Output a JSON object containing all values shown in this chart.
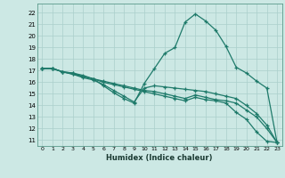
{
  "xlabel": "Humidex (Indice chaleur)",
  "ylabel": "",
  "bg_color": "#cce8e4",
  "grid_color": "#aacfcb",
  "line_color": "#1e7a6a",
  "xlim": [
    -0.5,
    23.5
  ],
  "ylim": [
    10.5,
    22.8
  ],
  "xticks": [
    0,
    1,
    2,
    3,
    4,
    5,
    6,
    7,
    8,
    9,
    10,
    11,
    12,
    13,
    14,
    15,
    16,
    17,
    18,
    19,
    20,
    21,
    22,
    23
  ],
  "yticks": [
    11,
    12,
    13,
    14,
    15,
    16,
    17,
    18,
    19,
    20,
    21,
    22
  ],
  "series": [
    [
      17.2,
      17.2,
      16.9,
      16.8,
      16.6,
      16.3,
      15.7,
      15.1,
      14.6,
      14.2,
      15.9,
      17.2,
      18.5,
      19.0,
      21.2,
      21.9,
      21.3,
      20.5,
      19.1,
      17.3,
      16.8,
      16.1,
      15.5,
      10.8
    ],
    [
      17.2,
      17.2,
      16.9,
      16.7,
      16.5,
      16.3,
      16.1,
      15.9,
      15.7,
      15.5,
      15.3,
      15.2,
      15.0,
      14.8,
      14.6,
      14.9,
      14.7,
      14.5,
      14.4,
      14.2,
      13.6,
      13.0,
      12.0,
      10.8
    ],
    [
      17.2,
      17.2,
      16.9,
      16.8,
      16.5,
      16.3,
      16.0,
      15.8,
      15.6,
      15.4,
      15.2,
      15.0,
      14.8,
      14.6,
      14.4,
      14.7,
      14.5,
      14.4,
      14.2,
      13.4,
      12.8,
      11.7,
      10.9,
      10.8
    ],
    [
      17.2,
      17.2,
      16.9,
      16.7,
      16.4,
      16.2,
      15.8,
      15.3,
      14.8,
      14.3,
      15.5,
      15.7,
      15.6,
      15.5,
      15.4,
      15.3,
      15.2,
      15.0,
      14.8,
      14.6,
      14.0,
      13.3,
      12.3,
      10.8
    ]
  ]
}
